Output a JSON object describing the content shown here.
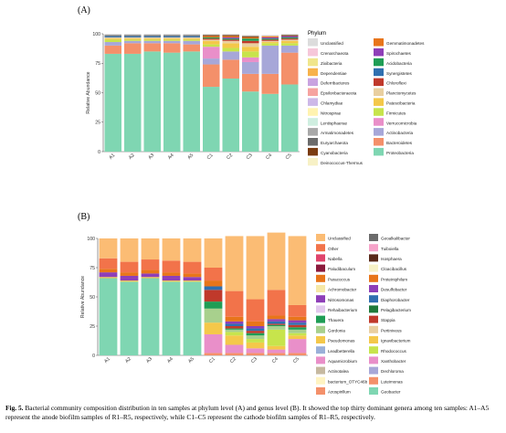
{
  "figure": {
    "panel_a_label": "(A)",
    "panel_b_label": "(B)",
    "caption_label": "Fig. 5.",
    "caption_text": " Bacterial community composition distribution in ten samples at phylum level (A) and genus level (B). It showed the top thirty dominant genera among ten samples: A1–A5 represent the anode biofilm samples of R1–R5, respectively, while C1–C5 represent the cathode biofilm samples of R1–R5, respectively."
  },
  "chart_data": [
    {
      "type": "bar",
      "stacked": true,
      "ylabel": "Relative Abundance",
      "ylim": [
        0,
        100
      ],
      "yticks": [
        0,
        25,
        50,
        75,
        100
      ],
      "categories": [
        "A1",
        "A2",
        "A3",
        "A4",
        "A5",
        "C1",
        "C2",
        "C3",
        "C4",
        "C5"
      ],
      "legend_title": "Phylum",
      "legend_position": "right",
      "series": [
        {
          "name": "Proteobacteria",
          "color": "#7fd6b2",
          "values": [
            83,
            83,
            85,
            84,
            85,
            55,
            62,
            51,
            49,
            57
          ]
        },
        {
          "name": "Bacteroidetes",
          "color": "#f4906a",
          "values": [
            7,
            9,
            7,
            8,
            6,
            19,
            16,
            15,
            17,
            27
          ]
        },
        {
          "name": "Actinobacteria",
          "color": "#a7a7d8",
          "values": [
            3,
            2,
            2,
            2,
            3,
            5,
            7,
            10,
            24,
            6
          ]
        },
        {
          "name": "Verrucomicrobia",
          "color": "#e98fc9",
          "values": [
            0,
            0,
            0,
            0,
            0,
            10,
            0,
            4,
            0,
            0
          ]
        },
        {
          "name": "Firmicutes",
          "color": "#c7e44c",
          "values": [
            2,
            1,
            1,
            1,
            1,
            2,
            3,
            5,
            2,
            2
          ]
        },
        {
          "name": "Patescibacteria",
          "color": "#f4c84a",
          "values": [
            1,
            1,
            1,
            1,
            1,
            3,
            4,
            4,
            1,
            2
          ]
        },
        {
          "name": "Planctomycetes",
          "color": "#e9cfa0",
          "values": [
            1,
            1,
            1,
            1,
            1,
            1,
            2,
            3,
            1,
            1
          ]
        },
        {
          "name": "Chloroflexi",
          "color": "#c0392b",
          "values": [
            0,
            0,
            0,
            0,
            0,
            1,
            1,
            2,
            1,
            1
          ]
        },
        {
          "name": "Synergistetes",
          "color": "#2f6fb0",
          "values": [
            1,
            1,
            1,
            1,
            1,
            0,
            0,
            0,
            0,
            0
          ]
        },
        {
          "name": "Acidobacteria",
          "color": "#1f9d55",
          "values": [
            0,
            0,
            0,
            0,
            0,
            1,
            1,
            2,
            1,
            1
          ]
        },
        {
          "name": "Spirochaetes",
          "color": "#8e3fb8",
          "values": [
            0,
            0,
            0,
            0,
            0,
            0,
            1,
            0,
            1,
            1
          ]
        },
        {
          "name": "Gemmatimonadetes",
          "color": "#e8751a",
          "values": [
            0,
            0,
            0,
            0,
            0,
            1,
            1,
            1,
            1,
            0
          ]
        },
        {
          "name": "Cyanobacteria",
          "color": "#7a3b10",
          "values": [
            0,
            0,
            0,
            0,
            0,
            1,
            1,
            1,
            0,
            1
          ]
        },
        {
          "name": "Euryarchaeota",
          "color": "#6b6b6b",
          "values": [
            1,
            1,
            1,
            1,
            1,
            0,
            0,
            0,
            0,
            0
          ]
        },
        {
          "name": "Others",
          "color": "#dcdcdc",
          "values": [
            1,
            1,
            1,
            1,
            1,
            1,
            1,
            1,
            1,
            1
          ]
        }
      ],
      "legend_entries": [
        {
          "name": "Unclassified",
          "color": "#dcdcdc"
        },
        {
          "name": "Crenarchaeota",
          "color": "#f6c7d9"
        },
        {
          "name": "Zixibacteria",
          "color": "#f0e68c"
        },
        {
          "name": "Dependentiae",
          "color": "#f7b24a"
        },
        {
          "name": "Deferribacteres",
          "color": "#c9a3e0"
        },
        {
          "name": "Epsilonbacteraeota",
          "color": "#f6a3a0"
        },
        {
          "name": "Chlamydiae",
          "color": "#cdb8e8"
        },
        {
          "name": "Nitrospirae",
          "color": "#fff3b0"
        },
        {
          "name": "Lentisphaerae",
          "color": "#cfeee0"
        },
        {
          "name": "Armatimonadetes",
          "color": "#a8a8a8"
        },
        {
          "name": "Euryarchaeota",
          "color": "#6b6b6b"
        },
        {
          "name": "Cyanobacteria",
          "color": "#7a3b10"
        },
        {
          "name": "Deinococcus-Thermus",
          "color": "#f7f1c6"
        },
        {
          "name": "Gemmatimonadetes",
          "color": "#e8751a"
        },
        {
          "name": "Spirochaetes",
          "color": "#8e3fb8"
        },
        {
          "name": "Acidobacteria",
          "color": "#1f9d55"
        },
        {
          "name": "Synergistetes",
          "color": "#2f6fb0"
        },
        {
          "name": "Chloroflexi",
          "color": "#c0392b"
        },
        {
          "name": "Planctomycetes",
          "color": "#e9cfa0"
        },
        {
          "name": "Patescibacteria",
          "color": "#f4c84a"
        },
        {
          "name": "Firmicutes",
          "color": "#c7e44c"
        },
        {
          "name": "Verrucomicrobia",
          "color": "#e98fc9"
        },
        {
          "name": "Actinobacteria",
          "color": "#a7a7d8"
        },
        {
          "name": "Bacteroidetes",
          "color": "#f4906a"
        },
        {
          "name": "Proteobacteria",
          "color": "#7fd6b2"
        }
      ]
    },
    {
      "type": "bar",
      "stacked": true,
      "ylabel": "Relative Abundance",
      "ylim": [
        0,
        100
      ],
      "yticks": [
        0,
        25,
        50,
        75,
        100
      ],
      "categories": [
        "A1",
        "A2",
        "A3",
        "A4",
        "A5",
        "C1",
        "C2",
        "C3",
        "C4",
        "C5"
      ],
      "legend_position": "right",
      "series": [
        {
          "name": "Geobacter",
          "color": "#7fd6b2",
          "values": [
            66,
            63,
            66,
            63,
            63,
            0,
            0,
            0,
            0,
            0
          ]
        },
        {
          "name": "Azospirillum",
          "color": "#f4906a",
          "values": [
            0,
            0,
            0,
            0,
            0,
            2,
            2,
            2,
            2,
            2
          ]
        },
        {
          "name": "Luteimonas",
          "color": "#a7a7d8",
          "values": [
            0,
            0,
            0,
            0,
            0,
            0,
            0,
            0,
            0,
            0
          ]
        },
        {
          "name": "Aquamicrobium",
          "color": "#e98fc9",
          "values": [
            0,
            0,
            0,
            0,
            0,
            16,
            7,
            4,
            3,
            12
          ]
        },
        {
          "name": "Pseudomonas",
          "color": "#f4c84a",
          "values": [
            1,
            1,
            1,
            1,
            1,
            10,
            8,
            5,
            3,
            3
          ]
        },
        {
          "name": "Rhodococcus",
          "color": "#c7e44c",
          "values": [
            0,
            0,
            0,
            0,
            0,
            0,
            3,
            3,
            14,
            2
          ]
        },
        {
          "name": "Gordonia",
          "color": "#a8d08d",
          "values": [
            0,
            0,
            0,
            0,
            0,
            12,
            2,
            3,
            3,
            3
          ]
        },
        {
          "name": "Thauera",
          "color": "#1f9d55",
          "values": [
            0,
            0,
            0,
            0,
            0,
            6,
            1,
            2,
            1,
            2
          ]
        },
        {
          "name": "Stappia",
          "color": "#c0392b",
          "values": [
            0,
            0,
            0,
            0,
            0,
            10,
            2,
            2,
            1,
            2
          ]
        },
        {
          "name": "Diaphorobacter",
          "color": "#2f6fb0",
          "values": [
            0,
            0,
            0,
            0,
            0,
            3,
            2,
            2,
            2,
            2
          ]
        },
        {
          "name": "Desulfomicrobium",
          "color": "#8e3fb8",
          "values": [
            4,
            4,
            3,
            4,
            3,
            0,
            2,
            2,
            2,
            2
          ]
        },
        {
          "name": "Paracoccus",
          "color": "#e8751a",
          "values": [
            3,
            3,
            3,
            3,
            3,
            5,
            4,
            4,
            3,
            3
          ]
        },
        {
          "name": "Other",
          "color": "#f2734a",
          "values": [
            9,
            9,
            9,
            10,
            10,
            11,
            22,
            19,
            22,
            10
          ]
        },
        {
          "name": "Unclassified",
          "color": "#fbbc74",
          "values": [
            17,
            20,
            18,
            19,
            20,
            25,
            47,
            54,
            49,
            59
          ]
        }
      ],
      "legend_entries": [
        {
          "name": "Unclassified",
          "color": "#fbbc74"
        },
        {
          "name": "Other",
          "color": "#f2734a"
        },
        {
          "name": "Nabella",
          "color": "#e0446b"
        },
        {
          "name": "Paludibaculum",
          "color": "#8b1a3c"
        },
        {
          "name": "Paracoccus",
          "color": "#e8751a"
        },
        {
          "name": "Achromobacter",
          "color": "#f6e8a6"
        },
        {
          "name": "Nitrosomonas",
          "color": "#8e3fb8"
        },
        {
          "name": "Rehaibacterium",
          "color": "#e2c9ee"
        },
        {
          "name": "Thauera",
          "color": "#1f9d55"
        },
        {
          "name": "Gordonia",
          "color": "#a8d08d"
        },
        {
          "name": "Pseudomonas",
          "color": "#f4c84a"
        },
        {
          "name": "Leadbetterella",
          "color": "#9ab0d8"
        },
        {
          "name": "Aquamicrobium",
          "color": "#e98fc9"
        },
        {
          "name": "Actinotalea",
          "color": "#c6b9a0"
        },
        {
          "name": "bacterium_OTYC46b",
          "color": "#fff4c2"
        },
        {
          "name": "Azospirillum",
          "color": "#f4906a"
        },
        {
          "name": "Geoalkalibacter",
          "color": "#6b6b6b"
        },
        {
          "name": "Tuiboiella",
          "color": "#f6a3c9"
        },
        {
          "name": "Isosphaera",
          "color": "#5a2a1a"
        },
        {
          "name": "Cloacibacillus",
          "color": "#f7f1c6"
        },
        {
          "name": "Proteiniphilum",
          "color": "#e8751a"
        },
        {
          "name": "Desulfobacter",
          "color": "#8e3fb8"
        },
        {
          "name": "Diaphorobacter",
          "color": "#2f6fb0"
        },
        {
          "name": "Pelagibacterium",
          "color": "#1f7a3a"
        },
        {
          "name": "Stappia",
          "color": "#c0392b"
        },
        {
          "name": "Pertiniveus",
          "color": "#e9cfa0"
        },
        {
          "name": "Ignavibacterium",
          "color": "#f4c84a"
        },
        {
          "name": "Rhodococcus",
          "color": "#c7e44c"
        },
        {
          "name": "Xanthobacter",
          "color": "#e98fc9"
        },
        {
          "name": "Dechloroma",
          "color": "#a7a7d8"
        },
        {
          "name": "Luteimonas",
          "color": "#f4906a"
        },
        {
          "name": "Geobacter",
          "color": "#7fd6b2"
        }
      ]
    }
  ]
}
